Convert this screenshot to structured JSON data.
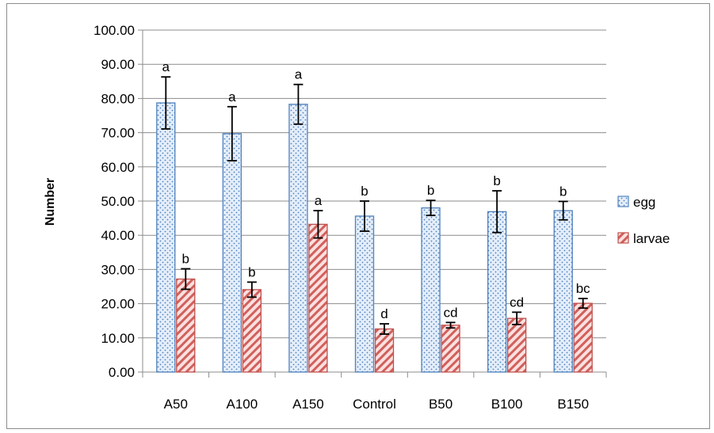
{
  "chart_data": {
    "type": "bar",
    "title": "",
    "xlabel": "",
    "ylabel": "Number",
    "ylim": [
      0,
      100
    ],
    "yticks": [
      "0.00",
      "10.00",
      "20.00",
      "30.00",
      "40.00",
      "50.00",
      "60.00",
      "70.00",
      "80.00",
      "90.00",
      "100.00"
    ],
    "categories": [
      "A50",
      "A100",
      "A150",
      "Control",
      "B50",
      "B100",
      "B150"
    ],
    "series": [
      {
        "name": "egg",
        "values": [
          78.7,
          69.7,
          78.3,
          45.6,
          48.0,
          46.9,
          47.2
        ],
        "errors": [
          7.6,
          7.9,
          5.8,
          4.4,
          2.2,
          6.1,
          2.7
        ],
        "letters": [
          "a",
          "a",
          "a",
          "b",
          "b",
          "b",
          "b"
        ],
        "color": "#9dc3e6",
        "edge": "#4f81bd"
      },
      {
        "name": "larvae",
        "values": [
          27.2,
          24.1,
          43.2,
          12.6,
          13.7,
          15.7,
          20.1
        ],
        "errors": [
          3.0,
          2.2,
          4.0,
          1.5,
          0.8,
          1.8,
          1.4
        ],
        "letters": [
          "b",
          "b",
          "a",
          "d",
          "cd",
          "cd",
          "bc"
        ],
        "color": "#e8a29e",
        "edge": "#c0504d"
      }
    ],
    "grid": true,
    "legend": "right"
  }
}
